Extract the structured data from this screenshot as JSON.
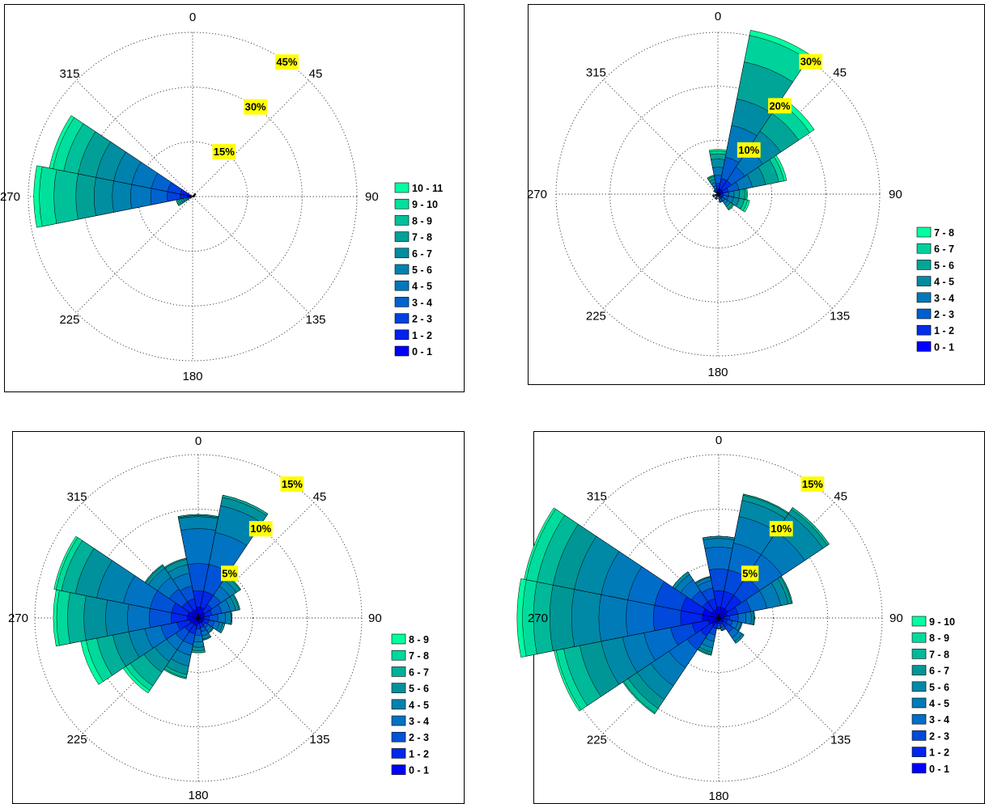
{
  "chart_data": [
    {
      "type": "polar-stacked-bar",
      "angle_labels": [
        "0",
        "45",
        "90",
        "135",
        "180",
        "225",
        "270",
        "315"
      ],
      "rings": [
        15,
        30,
        45
      ],
      "ring_labels": [
        "15%",
        "30%",
        "45%"
      ],
      "legend": [
        "10 - 11",
        "9 - 10",
        "8 - 9",
        "7 - 8",
        "6 - 7",
        "5 - 6",
        "4 - 5",
        "3 - 4",
        "2 - 3",
        "1 - 2",
        "0 - 1"
      ],
      "bins": [
        {
          "direction": 270,
          "cumulative": [
            1.5,
            3.5,
            7,
            11.5,
            17,
            22,
            27,
            32,
            38,
            42,
            43.5
          ]
        },
        {
          "direction": 292.5,
          "cumulative": [
            1.5,
            3.5,
            7,
            11.5,
            17,
            22,
            27,
            32,
            36,
            39,
            40
          ]
        },
        {
          "direction": 247.5,
          "cumulative": [
            0.3,
            0.6,
            1,
            1.5,
            2,
            2.6,
            3.2,
            3.8,
            4.2,
            4.5,
            4.6
          ]
        },
        {
          "direction": 45,
          "cumulative": [
            0.3,
            0.5,
            0.7,
            0.9,
            1.0,
            1.05,
            1.1,
            1.1,
            1.1,
            1.1,
            1.1
          ]
        },
        {
          "direction": 67.5,
          "cumulative": [
            0.2,
            0.4,
            0.5,
            0.6,
            0.65,
            0.7,
            0.7,
            0.7,
            0.7,
            0.7,
            0.7
          ]
        },
        {
          "direction": 90,
          "cumulative": [
            0.2,
            0.3,
            0.4,
            0.45,
            0.5,
            0.5,
            0.5,
            0.5,
            0.5,
            0.5,
            0.5
          ]
        }
      ]
    },
    {
      "type": "polar-stacked-bar",
      "angle_labels": [
        "0",
        "45",
        "90",
        "135",
        "180",
        "225",
        "270",
        "315"
      ],
      "rings": [
        10,
        20,
        30
      ],
      "ring_labels": [
        "10%",
        "20%",
        "30%"
      ],
      "legend": [
        "7 - 8",
        "6 - 7",
        "5 - 6",
        "4 - 5",
        "3 - 4",
        "2 - 3",
        "1 - 2",
        "0 - 1"
      ],
      "bins": [
        {
          "direction": 22.5,
          "cumulative": [
            1,
            3,
            7,
            13,
            18,
            25,
            30,
            31
          ]
        },
        {
          "direction": 45,
          "cumulative": [
            1,
            3,
            6,
            10,
            14,
            18,
            20.5,
            21.5
          ]
        },
        {
          "direction": 67.5,
          "cumulative": [
            1,
            2,
            4,
            6.5,
            9,
            11.5,
            12.5,
            13
          ]
        },
        {
          "direction": 0,
          "cumulative": [
            0.8,
            2,
            3.5,
            5,
            6.5,
            7.5,
            8,
            8.3
          ]
        },
        {
          "direction": 90,
          "cumulative": [
            0.5,
            1,
            2,
            3,
            4,
            5,
            5.3,
            5.5
          ]
        },
        {
          "direction": 112.5,
          "cumulative": [
            0.5,
            1,
            2,
            3,
            4,
            5,
            5.6,
            6
          ]
        },
        {
          "direction": 135,
          "cumulative": [
            0.5,
            1,
            1.6,
            2.2,
            2.8,
            3.3,
            3.5,
            3.6
          ]
        },
        {
          "direction": 157.5,
          "cumulative": [
            0.3,
            0.7,
            1,
            1.3,
            1.5,
            1.6,
            1.6,
            1.6
          ]
        },
        {
          "direction": 337.5,
          "cumulative": [
            0.5,
            1,
            1.6,
            2.2,
            2.8,
            3.3,
            3.5,
            3.6
          ]
        },
        {
          "direction": 315,
          "cumulative": [
            0.3,
            0.5,
            0.7,
            0.9,
            1,
            1,
            1,
            1
          ]
        },
        {
          "direction": 202.5,
          "cumulative": [
            0.2,
            0.4,
            0.6,
            0.8,
            0.9,
            1,
            1,
            1
          ]
        },
        {
          "direction": 247.5,
          "cumulative": [
            0.2,
            0.4,
            0.6,
            0.8,
            0.9,
            1,
            1,
            1
          ]
        }
      ]
    },
    {
      "type": "polar-stacked-bar",
      "angle_labels": [
        "0",
        "45",
        "90",
        "135",
        "180",
        "225",
        "270",
        "315"
      ],
      "rings": [
        5,
        10,
        15
      ],
      "ring_labels": [
        "5%",
        "10%",
        "15%"
      ],
      "legend": [
        "8 - 9",
        "7 - 8",
        "6 - 7",
        "5 - 6",
        "4 - 5",
        "3 - 4",
        "2 - 3",
        "1 - 2",
        "0 - 1"
      ],
      "bins": [
        {
          "direction": 0,
          "cumulative": [
            1,
            2.5,
            5,
            8.2,
            9.3,
            9.4,
            9.5,
            9.5,
            9.5
          ]
        },
        {
          "direction": 22.5,
          "cumulative": [
            1,
            2.5,
            5,
            8,
            10.5,
            11.3,
            11.5,
            11.5,
            11.5
          ]
        },
        {
          "direction": 45,
          "cumulative": [
            0.7,
            1.5,
            2.5,
            3.5,
            4.2,
            4.6,
            4.7,
            4.7,
            4.7
          ]
        },
        {
          "direction": 67.5,
          "cumulative": [
            0.6,
            1.3,
            2.2,
            3,
            3.5,
            3.8,
            3.9,
            3.9,
            3.9
          ]
        },
        {
          "direction": 90,
          "cumulative": [
            0.5,
            1,
            1.8,
            2.5,
            3,
            3.1,
            3.1,
            3.1,
            3.1
          ]
        },
        {
          "direction": 112.5,
          "cumulative": [
            0.5,
            1,
            1.5,
            2,
            2.3,
            2.5,
            2.5,
            2.5,
            2.5
          ]
        },
        {
          "direction": 135,
          "cumulative": [
            0.5,
            0.8,
            1.1,
            1.4,
            1.6,
            1.7,
            1.7,
            1.7,
            1.7
          ]
        },
        {
          "direction": 157.5,
          "cumulative": [
            0.5,
            0.9,
            1.3,
            1.7,
            2.0,
            2.1,
            2.1,
            2.1,
            2.1
          ]
        },
        {
          "direction": 180,
          "cumulative": [
            0.5,
            1,
            1.6,
            2.2,
            2.7,
            3,
            3.2,
            3.2,
            3.2
          ]
        },
        {
          "direction": 202.5,
          "cumulative": [
            0.7,
            1.5,
            2.5,
            3.5,
            4.5,
            5.3,
            5.6,
            5.7,
            5.7
          ]
        },
        {
          "direction": 225,
          "cumulative": [
            0.7,
            1.5,
            2.5,
            3.5,
            4.8,
            6,
            7.5,
            8,
            8.3
          ]
        },
        {
          "direction": 247.5,
          "cumulative": [
            0.8,
            2,
            3.5,
            5,
            6.5,
            8,
            9.5,
            10.5,
            11
          ]
        },
        {
          "direction": 270,
          "cumulative": [
            1,
            2.5,
            4.5,
            6.5,
            8.5,
            10.5,
            12,
            13,
            13.3
          ]
        },
        {
          "direction": 292.5,
          "cumulative": [
            1,
            2.5,
            4.5,
            7,
            9.5,
            11.5,
            12.8,
            13.3,
            13.5
          ]
        },
        {
          "direction": 315,
          "cumulative": [
            0.8,
            1.8,
            3.2,
            4.5,
            5.5,
            5.8,
            5.9,
            5.9,
            5.9
          ]
        },
        {
          "direction": 337.5,
          "cumulative": [
            0.8,
            1.8,
            3,
            4.2,
            5,
            5.5,
            5.6,
            5.6,
            5.6
          ]
        }
      ]
    },
    {
      "type": "polar-stacked-bar",
      "angle_labels": [
        "0",
        "45",
        "90",
        "135",
        "180",
        "225",
        "270",
        "315"
      ],
      "rings": [
        5,
        10,
        15
      ],
      "ring_labels": [
        "5%",
        "10%",
        "15%"
      ],
      "legend": [
        "9 - 10",
        "8 - 9",
        "7 - 8",
        "6 - 7",
        "5 - 6",
        "4 - 5",
        "3 - 4",
        "2 - 3",
        "1 - 2",
        "0 - 1"
      ],
      "bins": [
        {
          "direction": 0,
          "cumulative": [
            1,
            2.5,
            4.5,
            6.5,
            7.3,
            7.5,
            7.5,
            7.5,
            7.5,
            7.5
          ]
        },
        {
          "direction": 22.5,
          "cumulative": [
            1,
            2.5,
            4.5,
            7,
            9.5,
            11,
            11.5,
            11.6,
            11.6,
            11.6
          ]
        },
        {
          "direction": 45,
          "cumulative": [
            1,
            2.5,
            4.5,
            7,
            9.5,
            11.5,
            12,
            12.2,
            12.2,
            12.2
          ]
        },
        {
          "direction": 67.5,
          "cumulative": [
            0.8,
            1.8,
            3,
            4.5,
            5.8,
            6.5,
            6.8,
            6.9,
            6.9,
            6.9
          ]
        },
        {
          "direction": 90,
          "cumulative": [
            0.5,
            1,
            1.8,
            2.5,
            3,
            3.2,
            3.3,
            3.3,
            3.3,
            3.3
          ]
        },
        {
          "direction": 112.5,
          "cumulative": [
            0.4,
            0.8,
            1.3,
            1.8,
            2.1,
            2.2,
            2.2,
            2.2,
            2.2,
            2.2
          ]
        },
        {
          "direction": 135,
          "cumulative": [
            0.5,
            1,
            1.6,
            2.2,
            2.6,
            2.8,
            2.8,
            2.8,
            2.8,
            2.8
          ]
        },
        {
          "direction": 157.5,
          "cumulative": [
            0.3,
            0.6,
            0.9,
            1.1,
            1.2,
            1.2,
            1.2,
            1.2,
            1.2,
            1.2
          ]
        },
        {
          "direction": 180,
          "cumulative": [
            0.3,
            0.5,
            0.7,
            0.9,
            1,
            1,
            1,
            1,
            1,
            1
          ]
        },
        {
          "direction": 202.5,
          "cumulative": [
            0.5,
            1,
            1.6,
            2.2,
            2.8,
            3.2,
            3.4,
            3.5,
            3.5,
            3.5
          ]
        },
        {
          "direction": 225,
          "cumulative": [
            0.8,
            2,
            3.5,
            5.5,
            7.5,
            9,
            10,
            10.5,
            10.6,
            10.6
          ]
        },
        {
          "direction": 247.5,
          "cumulative": [
            1,
            2.5,
            4.5,
            7,
            9,
            11,
            13,
            14.5,
            15.2,
            15.4
          ]
        },
        {
          "direction": 270,
          "cumulative": [
            1.5,
            3.5,
            6,
            8.5,
            11,
            13.5,
            15.5,
            17,
            18,
            18.5
          ]
        },
        {
          "direction": 292.5,
          "cumulative": [
            1.5,
            3.5,
            6,
            8.5,
            11,
            13.5,
            15.5,
            17,
            18,
            18.2
          ]
        },
        {
          "direction": 315,
          "cumulative": [
            0.8,
            1.8,
            3,
            4.2,
            4.8,
            5.1,
            5.1,
            5.1,
            5.1,
            5.1
          ]
        },
        {
          "direction": 337.5,
          "cumulative": [
            0.8,
            1.8,
            2.8,
            3.5,
            3.8,
            3.9,
            3.9,
            3.9,
            3.9,
            3.9
          ]
        }
      ]
    }
  ]
}
